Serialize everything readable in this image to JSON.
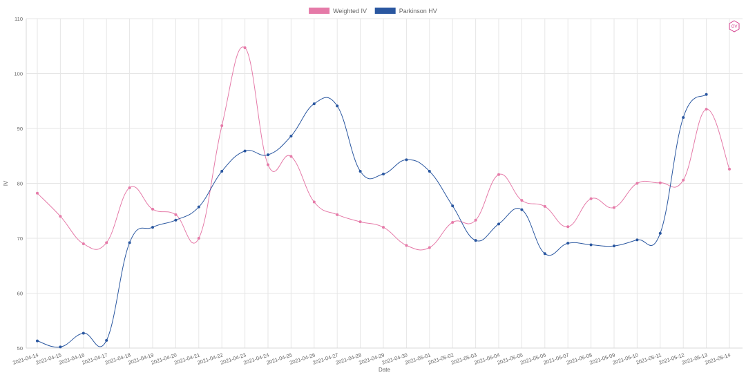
{
  "chart_data": {
    "type": "line",
    "xlabel": "Date",
    "ylabel": "IV",
    "ylim": [
      50,
      110
    ],
    "yticks": [
      50,
      60,
      70,
      80,
      90,
      100,
      110
    ],
    "grid": true,
    "legend_position": "top-center",
    "categories": [
      "2021-04-14",
      "2021-04-15",
      "2021-04-16",
      "2021-04-17",
      "2021-04-18",
      "2021-04-19",
      "2021-04-20",
      "2021-04-21",
      "2021-04-22",
      "2021-04-23",
      "2021-04-24",
      "2021-04-25",
      "2021-04-26",
      "2021-04-27",
      "2021-04-28",
      "2021-04-29",
      "2021-04-30",
      "2021-05-01",
      "2021-05-02",
      "2021-05-03",
      "2021-05-04",
      "2021-05-05",
      "2021-05-06",
      "2021-05-07",
      "2021-05-08",
      "2021-05-09",
      "2021-05-10",
      "2021-05-11",
      "2021-05-12",
      "2021-05-13",
      "2021-05-14"
    ],
    "series": [
      {
        "name": "Weighted IV",
        "color": "#e57aa8",
        "values": [
          78.2,
          74.0,
          69.0,
          69.2,
          79.2,
          75.3,
          74.3,
          70.0,
          90.5,
          104.7,
          83.4,
          84.9,
          76.6,
          74.3,
          73.0,
          72.0,
          68.7,
          68.3,
          72.9,
          73.3,
          81.6,
          76.9,
          75.8,
          72.1,
          77.2,
          75.6,
          80.0,
          80.1,
          80.6,
          93.5,
          82.6
        ]
      },
      {
        "name": "Parkinson HV",
        "color": "#2a57a0",
        "values": [
          51.3,
          50.2,
          52.7,
          51.4,
          69.2,
          72.0,
          73.3,
          75.7,
          82.2,
          85.9,
          85.2,
          88.6,
          94.5,
          94.1,
          82.2,
          81.7,
          84.3,
          82.2,
          75.9,
          69.6,
          72.6,
          75.2,
          67.2,
          69.1,
          68.8,
          68.6,
          69.7,
          70.9,
          92.0,
          96.2,
          null
        ]
      }
    ]
  },
  "colors": {
    "grid": "#e6e6e6",
    "text": "#666666",
    "logo": "#d23a8a"
  },
  "logo": {
    "icon": "hexagon-logo-icon",
    "text": "GV"
  }
}
